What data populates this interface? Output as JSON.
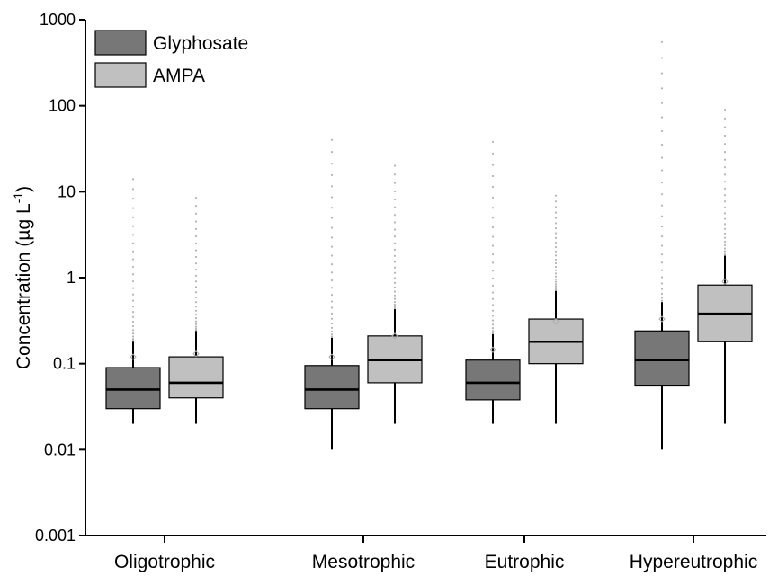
{
  "chart_data": {
    "type": "box",
    "title": "",
    "xlabel": "",
    "ylabel": "Concentration (µg L",
    "ylabel_sup": "-1",
    "ylabel_close": ")",
    "yscale": "log",
    "ylim": [
      0.001,
      1000
    ],
    "yticks": [
      {
        "value": 0.001,
        "label": "0.001"
      },
      {
        "value": 0.01,
        "label": "0.01"
      },
      {
        "value": 0.1,
        "label": "0.1"
      },
      {
        "value": 1,
        "label": "1"
      },
      {
        "value": 10,
        "label": "10"
      },
      {
        "value": 100,
        "label": "100"
      },
      {
        "value": 1000,
        "label": "1000"
      }
    ],
    "categories": [
      "Oligotrophic",
      "Mesotrophic",
      "Eutrophic",
      "Hypereutrophic"
    ],
    "legend_position": "top-left",
    "series": [
      {
        "name": "Glyphosate",
        "color": "#777777",
        "boxes": [
          {
            "whisker_low": 0.02,
            "q1": 0.03,
            "median": 0.05,
            "q3": 0.09,
            "whisker_high": 0.18,
            "mean": 0.12,
            "outlier_max": 14
          },
          {
            "whisker_low": 0.01,
            "q1": 0.03,
            "median": 0.05,
            "q3": 0.095,
            "whisker_high": 0.2,
            "mean": 0.12,
            "outlier_max": 40
          },
          {
            "whisker_low": 0.02,
            "q1": 0.038,
            "median": 0.06,
            "q3": 0.11,
            "whisker_high": 0.22,
            "mean": 0.145,
            "outlier_max": 38
          },
          {
            "whisker_low": 0.01,
            "q1": 0.055,
            "median": 0.11,
            "q3": 0.24,
            "whisker_high": 0.52,
            "mean": 0.33,
            "outlier_max": 550
          }
        ]
      },
      {
        "name": "AMPA",
        "color": "#c0c0c0",
        "boxes": [
          {
            "whisker_low": 0.02,
            "q1": 0.04,
            "median": 0.06,
            "q3": 0.12,
            "whisker_high": 0.24,
            "mean": 0.13,
            "outlier_max": 8.5
          },
          {
            "whisker_low": 0.02,
            "q1": 0.06,
            "median": 0.11,
            "q3": 0.21,
            "whisker_high": 0.43,
            "mean": 0.21,
            "outlier_max": 20
          },
          {
            "whisker_low": 0.02,
            "q1": 0.1,
            "median": 0.18,
            "q3": 0.33,
            "whisker_high": 0.7,
            "mean": 0.31,
            "outlier_max": 9
          },
          {
            "whisker_low": 0.02,
            "q1": 0.18,
            "median": 0.38,
            "q3": 0.82,
            "whisker_high": 1.8,
            "mean": 0.9,
            "outlier_max": 90
          }
        ]
      }
    ]
  }
}
